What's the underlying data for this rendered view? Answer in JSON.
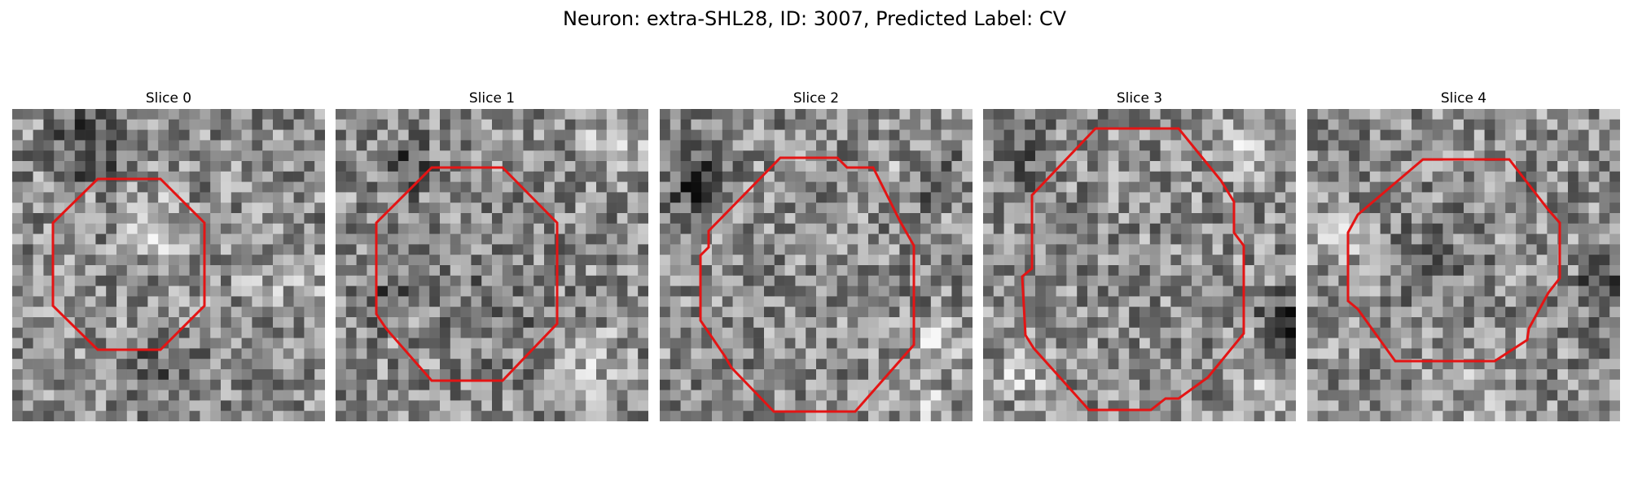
{
  "figure": {
    "title": "Neuron: extra-SHL28, ID: 3007, Predicted Label: CV"
  },
  "panels": [
    {
      "title": "Slice 0",
      "contour_color": "#e41414",
      "seed": 11
    },
    {
      "title": "Slice 1",
      "contour_color": "#e41414",
      "seed": 23
    },
    {
      "title": "Slice 2",
      "contour_color": "#e41414",
      "seed": 37
    },
    {
      "title": "Slice 3",
      "contour_color": "#e41414",
      "seed": 53
    },
    {
      "title": "Slice 4",
      "contour_color": "#e41414",
      "seed": 71
    }
  ]
}
